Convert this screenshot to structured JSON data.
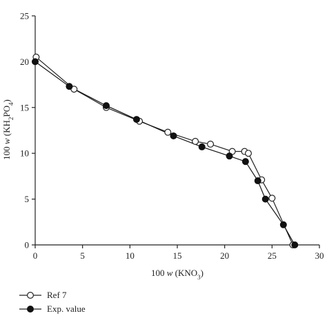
{
  "chart_data": {
    "type": "line",
    "xlabel": {
      "prefix": "100 ",
      "var": "w",
      "mid": " (KNO",
      "sub": "3",
      "suffix": ")"
    },
    "ylabel": {
      "prefix": "100 ",
      "var": "w",
      "mid": " (KH",
      "sub1": "2",
      "mid2": "PO",
      "sub2": "4",
      "suffix": ")"
    },
    "xlim": [
      0,
      30
    ],
    "ylim": [
      0,
      25
    ],
    "xticks": [
      0,
      5,
      10,
      15,
      20,
      25,
      30
    ],
    "yticks": [
      0,
      5,
      10,
      15,
      20,
      25
    ],
    "grid": false,
    "legend_position": "bottom-left",
    "series": [
      {
        "name": "Ref 7",
        "marker": "open-circle",
        "color": "#222222",
        "x": [
          0.1,
          4.1,
          7.5,
          11.0,
          14.0,
          16.9,
          18.5,
          20.8,
          22.1,
          22.5,
          23.9,
          25.0,
          27.2
        ],
        "y": [
          20.5,
          17.0,
          15.0,
          13.5,
          12.3,
          11.3,
          11.0,
          10.2,
          10.2,
          10.0,
          7.1,
          5.1,
          0.0
        ]
      },
      {
        "name": "Exp. value",
        "marker": "filled-circle",
        "color": "#111111",
        "x": [
          0.0,
          3.6,
          7.5,
          10.7,
          14.6,
          17.6,
          20.5,
          22.2,
          23.5,
          24.3,
          26.2,
          27.4
        ],
        "y": [
          20.0,
          17.3,
          15.2,
          13.7,
          11.9,
          10.7,
          9.7,
          9.1,
          7.0,
          5.0,
          2.2,
          0.0
        ]
      }
    ]
  }
}
